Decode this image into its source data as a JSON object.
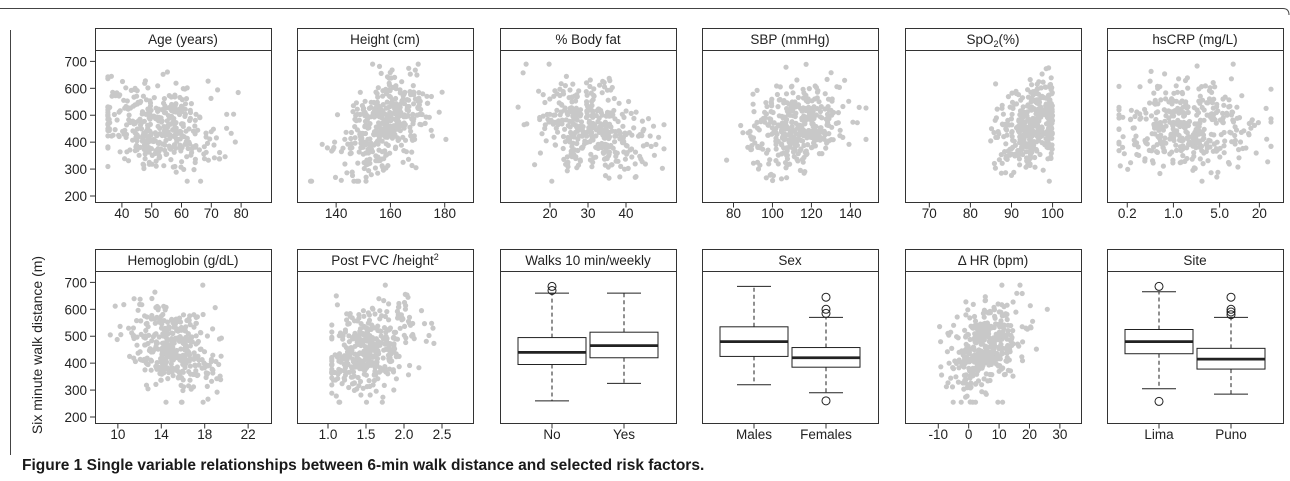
{
  "figure": {
    "caption_label": "Figure 1",
    "caption_text": "Single variable relationships between 6-min walk distance and selected risk factors.",
    "y_axis_label": "Six minute walk distance (m)",
    "colors": {
      "points": "#c8c8c8",
      "frame": "#333333",
      "box_line": "#222222"
    }
  },
  "chart_data": [
    {
      "type": "scatter",
      "title": "Age (years)",
      "xticks": [
        "40",
        "50",
        "60",
        "70",
        "80"
      ],
      "xlim": [
        35,
        86
      ],
      "ylim": [
        200,
        720
      ],
      "yticks": [
        200,
        300,
        400,
        500,
        600,
        700
      ],
      "x_center": 52,
      "x_spread": 10,
      "trend": -2.2,
      "n": 380
    },
    {
      "type": "scatter",
      "title": "Height (cm)",
      "xticks": [
        "140",
        "160",
        "180"
      ],
      "xlim": [
        130,
        186
      ],
      "ylim": [
        200,
        720
      ],
      "yticks": [
        200,
        300,
        400,
        500,
        600,
        700
      ],
      "x_center": 157,
      "x_spread": 8,
      "trend": 5.0,
      "n": 380
    },
    {
      "type": "scatter",
      "title": "% Body fat",
      "xticks": [
        "20",
        "30",
        "40"
      ],
      "xlim": [
        10,
        50
      ],
      "ylim": [
        200,
        720
      ],
      "yticks": [
        200,
        300,
        400,
        500,
        600,
        700
      ],
      "x_center": 31,
      "x_spread": 7,
      "trend": -4.0,
      "n": 380
    },
    {
      "type": "scatter",
      "title": "SBP (mmHg)",
      "xticks": [
        "80",
        "100",
        "120",
        "140"
      ],
      "xlim": [
        70,
        148
      ],
      "ylim": [
        200,
        720
      ],
      "yticks": [
        200,
        300,
        400,
        500,
        600,
        700
      ],
      "x_center": 112,
      "x_spread": 13,
      "trend": 1.2,
      "n": 380
    },
    {
      "type": "scatter",
      "title": "SpO2(%)",
      "title_main": "SpO",
      "title_sub": "2",
      "title_rest": "(%)",
      "xticks": [
        "70",
        "80",
        "90",
        "100"
      ],
      "xlim": [
        67,
        104
      ],
      "ylim": [
        200,
        720
      ],
      "yticks": [
        200,
        300,
        400,
        500,
        600,
        700
      ],
      "x_center": 95,
      "x_spread": 4,
      "x_cap": 100,
      "trend": 6.0,
      "n": 380
    },
    {
      "type": "scatter",
      "title": "hsCRP (mg/L)",
      "xticks": [
        "0.2",
        "1.0",
        "5.0",
        "20"
      ],
      "x_log": true,
      "xlim": [
        0.15,
        30
      ],
      "ylim": [
        200,
        720
      ],
      "yticks": [
        200,
        300,
        400,
        500,
        600,
        700
      ],
      "x_center": 1.6,
      "x_spread": 0.55,
      "trend": 0.0,
      "n": 380
    },
    {
      "type": "scatter",
      "title": "Hemoglobin (g/dL)",
      "xticks": [
        "10",
        "14",
        "18",
        "22"
      ],
      "xlim": [
        9,
        23
      ],
      "ylim": [
        200,
        720
      ],
      "yticks": [
        200,
        300,
        400,
        500,
        600,
        700
      ],
      "x_center": 15,
      "x_spread": 1.9,
      "trend": -14.0,
      "n": 380
    },
    {
      "type": "scatter",
      "title": "Post FVC/height2",
      "title_main": "Post FVC",
      "title_sep": "/",
      "title_tail": "height",
      "title_sup": "2",
      "xticks": [
        "1.0",
        "1.5",
        "2.0",
        "2.5"
      ],
      "xlim": [
        0.75,
        2.75
      ],
      "ylim": [
        200,
        720
      ],
      "yticks": [
        200,
        300,
        400,
        500,
        600,
        700
      ],
      "x_center": 1.55,
      "x_spread": 0.28,
      "trend": 120.0,
      "n": 380
    },
    {
      "type": "box",
      "title": "Walks 10 min/weekly",
      "categories": [
        "No",
        "Yes"
      ],
      "ylim": [
        200,
        720
      ],
      "yticks": [
        200,
        300,
        400,
        500,
        600,
        700
      ],
      "boxes": [
        {
          "name": "No",
          "min": 260,
          "q1": 395,
          "median": 440,
          "q3": 495,
          "max": 660,
          "outliers": [
            670,
            685
          ]
        },
        {
          "name": "Yes",
          "min": 325,
          "q1": 420,
          "median": 465,
          "q3": 515,
          "max": 660,
          "outliers": []
        }
      ]
    },
    {
      "type": "box",
      "title": "Sex",
      "categories": [
        "Males",
        "Females"
      ],
      "ylim": [
        200,
        720
      ],
      "yticks": [
        200,
        300,
        400,
        500,
        600,
        700
      ],
      "boxes": [
        {
          "name": "Males",
          "min": 320,
          "q1": 425,
          "median": 480,
          "q3": 535,
          "max": 685,
          "outliers": []
        },
        {
          "name": "Females",
          "min": 290,
          "q1": 385,
          "median": 420,
          "q3": 458,
          "max": 570,
          "outliers": [
            585,
            600,
            645,
            260
          ]
        }
      ]
    },
    {
      "type": "scatter",
      "title": "Δ HR (bpm)",
      "xticks": [
        "-10",
        "0",
        "10",
        "20",
        "30"
      ],
      "xlim": [
        -17,
        33
      ],
      "ylim": [
        200,
        720
      ],
      "yticks": [
        200,
        300,
        400,
        500,
        600,
        700
      ],
      "x_center": 5,
      "x_spread": 6,
      "trend": 5.5,
      "n": 380
    },
    {
      "type": "box",
      "title": "Site",
      "categories": [
        "Lima",
        "Puno"
      ],
      "ylim": [
        200,
        720
      ],
      "yticks": [
        200,
        300,
        400,
        500,
        600,
        700
      ],
      "boxes": [
        {
          "name": "Lima",
          "min": 305,
          "q1": 435,
          "median": 480,
          "q3": 525,
          "max": 665,
          "outliers": [
            685,
            258
          ]
        },
        {
          "name": "Puno",
          "min": 285,
          "q1": 378,
          "median": 415,
          "q3": 455,
          "max": 570,
          "outliers": [
            580,
            590,
            600,
            645
          ]
        }
      ]
    }
  ]
}
